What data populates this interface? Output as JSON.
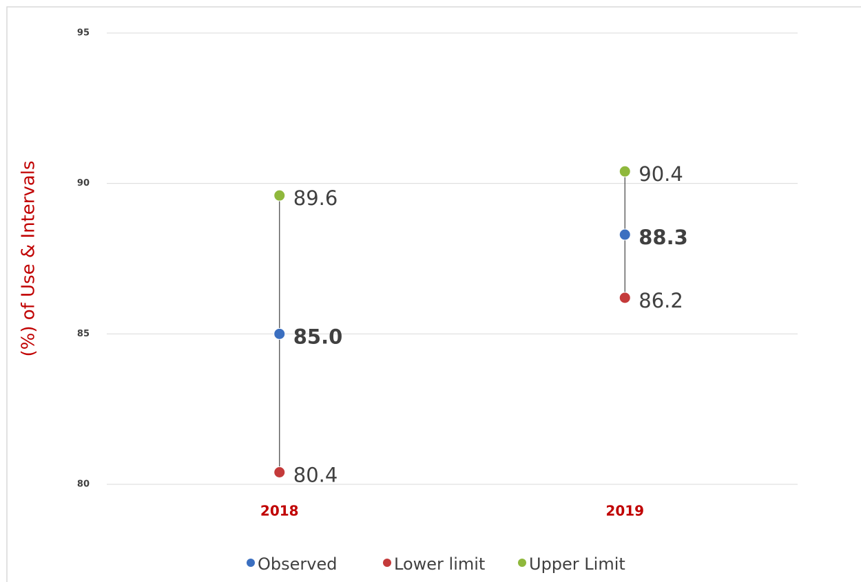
{
  "chart_data": {
    "type": "range_dot",
    "y_axis_label": "(%) of Use & Intervals",
    "categories": [
      "2018",
      "2019"
    ],
    "series": [
      {
        "name": "Observed",
        "color": "#3b6fc0",
        "values": [
          85.0,
          88.3
        ],
        "value_labels": [
          "85.0",
          "88.3"
        ]
      },
      {
        "name": "Lower limit",
        "color": "#c43a3a",
        "values": [
          80.4,
          86.2
        ]
      },
      {
        "name": "Upper Limit",
        "color": "#8fb83c",
        "values": [
          89.6,
          90.4
        ]
      }
    ],
    "ylim": [
      80,
      95
    ],
    "yticks": [
      80,
      85,
      90,
      95
    ],
    "grid": true,
    "legend": "bottom"
  }
}
